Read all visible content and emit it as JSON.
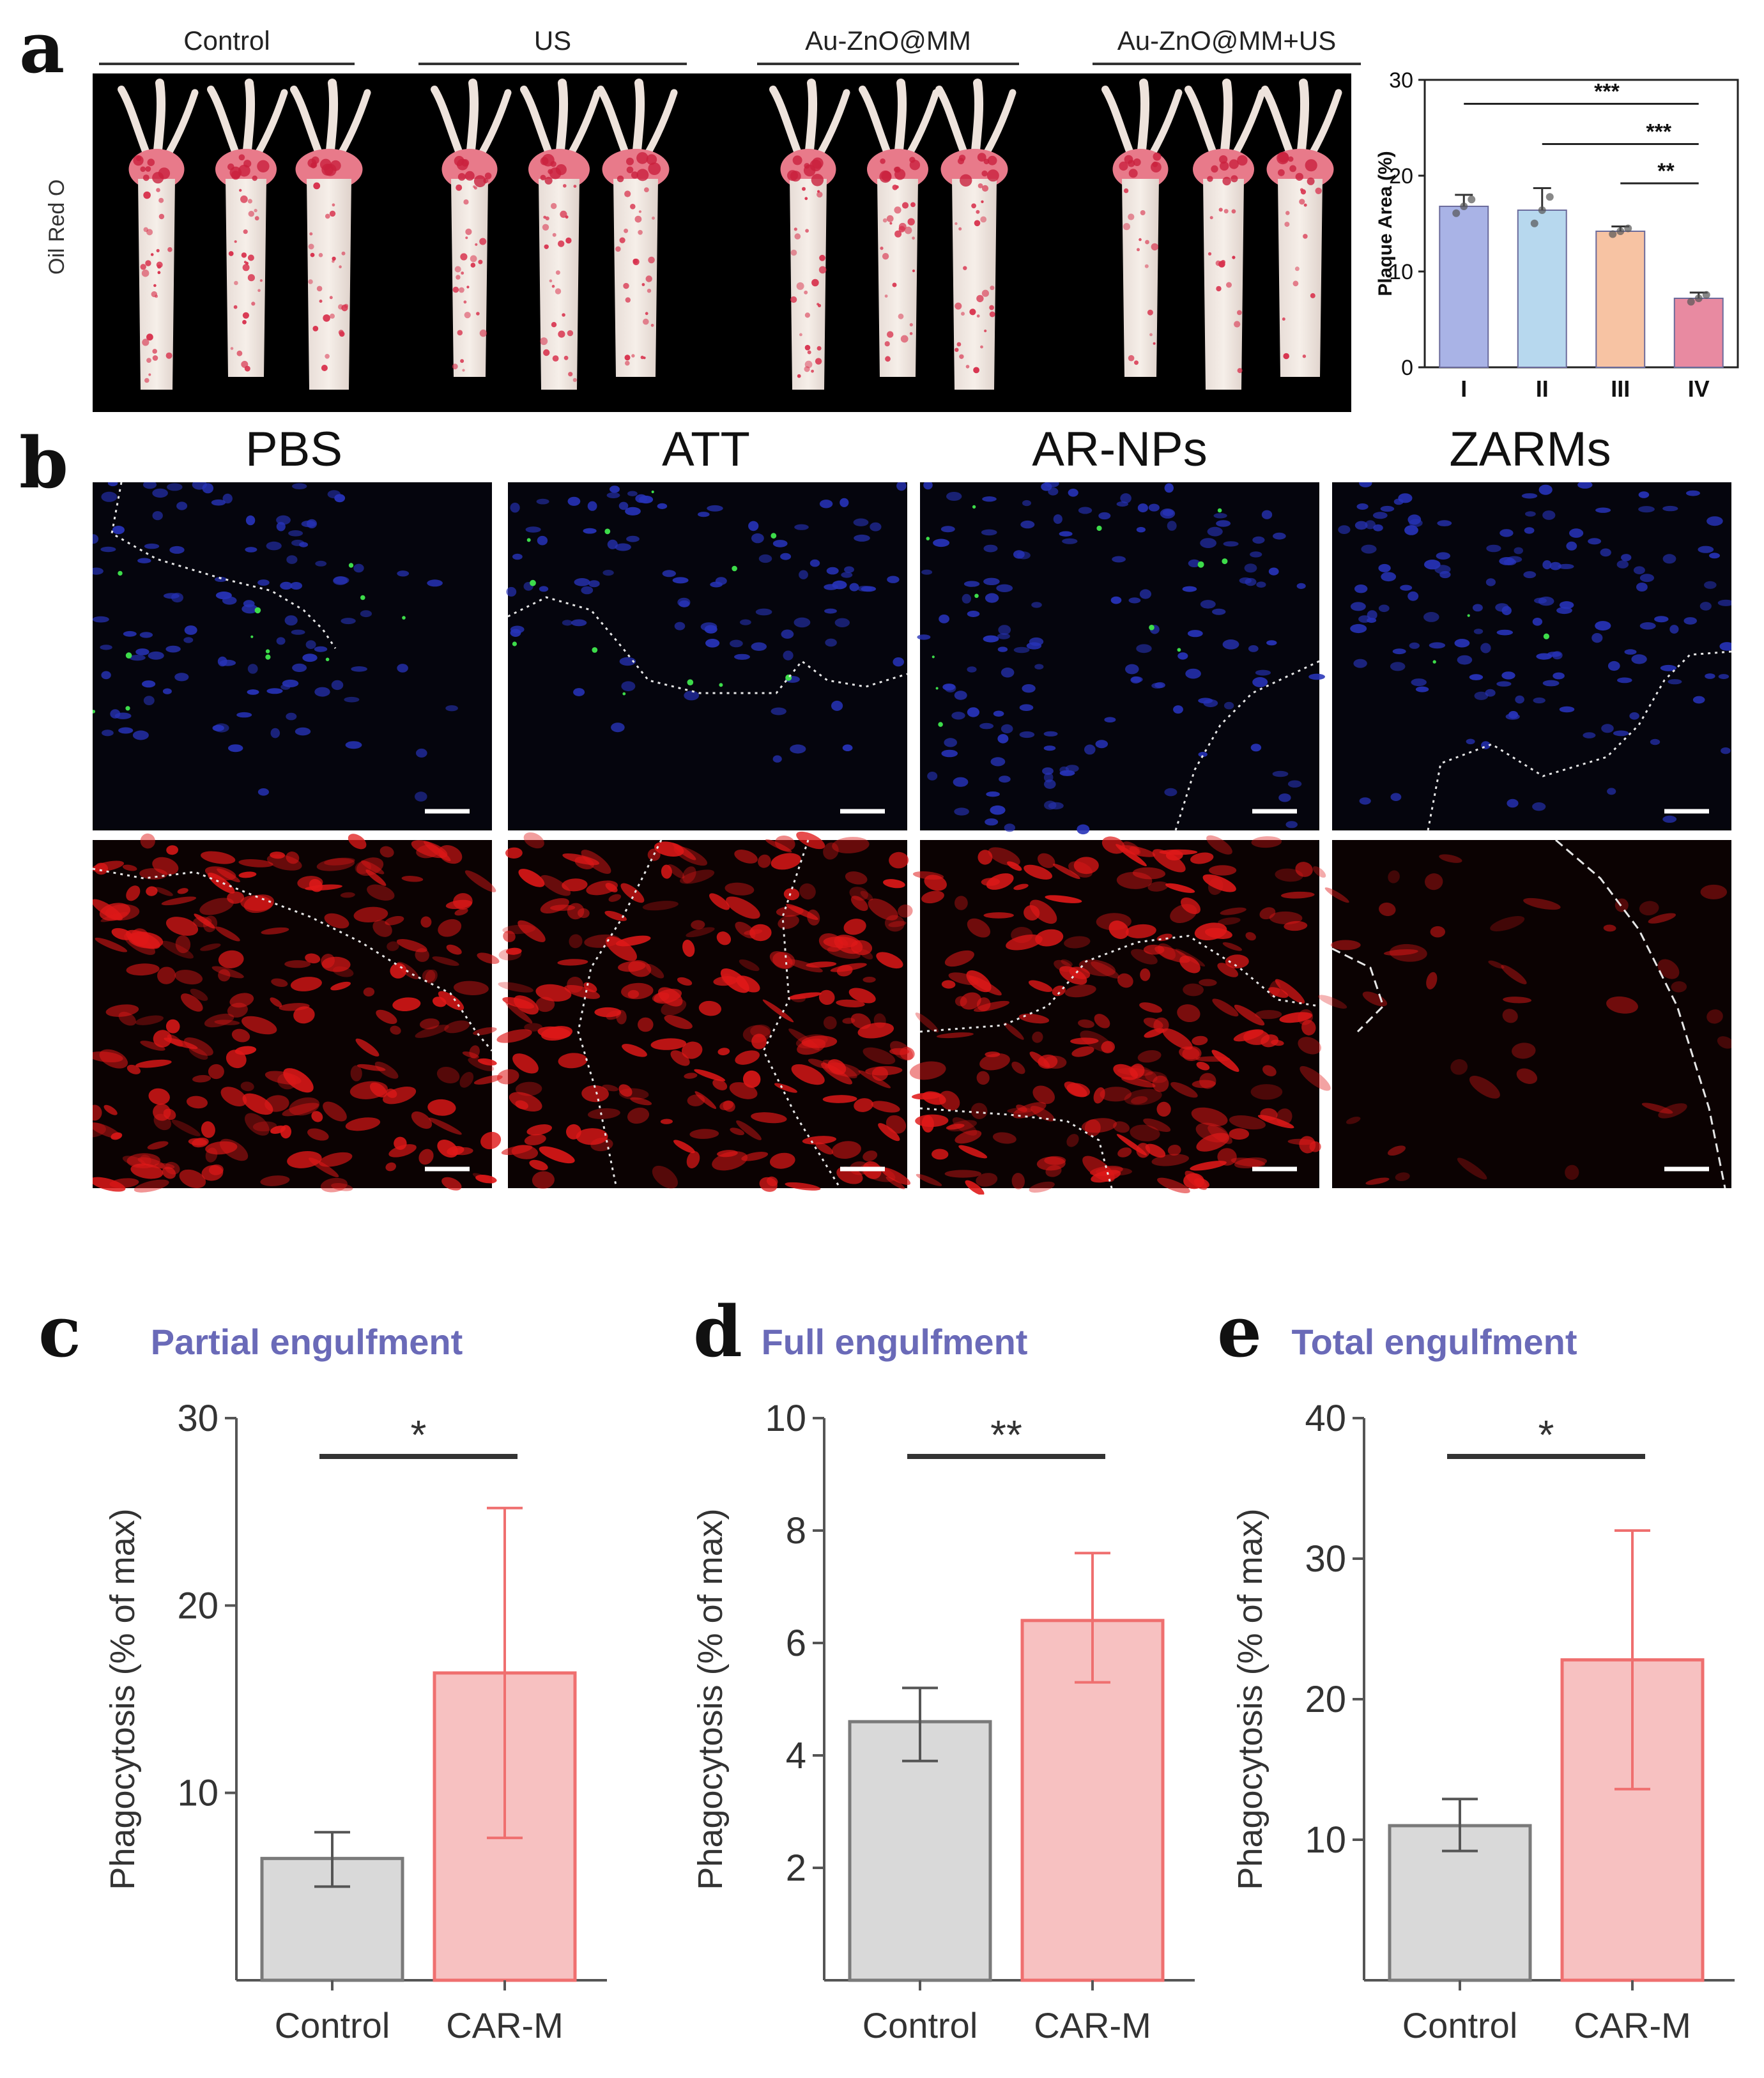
{
  "panels": {
    "a": {
      "letter": "a",
      "groups": [
        "Control",
        "US",
        "Au-ZnO@MM",
        "Au-ZnO@MM+US"
      ],
      "stain_label": "Oil Red O"
    },
    "b": {
      "letter": "b",
      "columns": [
        "PBS",
        "ATT",
        "AR-NPs",
        "ZARMs"
      ]
    },
    "c": {
      "letter": "c"
    },
    "d": {
      "letter": "d"
    },
    "e": {
      "letter": "e"
    }
  },
  "colors": {
    "control_bar": "#d9d9d9",
    "control_edge": "#7a7a7a",
    "carm_bar": "#f7c1c1",
    "carm_edge": "#ef6f6f",
    "title_purple": "#6a6ab8",
    "plaque_I": "#a9b3e6",
    "plaque_II": "#b7d8ee",
    "plaque_III": "#f7c3a3",
    "plaque_IV": "#e88aa1"
  },
  "chart_data": [
    {
      "type": "bar",
      "id": "a-plaque",
      "categories": [
        "I",
        "II",
        "III",
        "IV"
      ],
      "values": [
        16.8,
        16.4,
        14.2,
        7.2
      ],
      "errors": [
        1.2,
        2.3,
        0.5,
        0.6
      ],
      "title": "",
      "xlabel": "",
      "ylabel": "Plaque Area (%)",
      "ylim": [
        0,
        30
      ],
      "yticks": [
        0,
        10,
        20,
        30
      ],
      "significance": [
        {
          "from": "I",
          "to": "IV",
          "label": "***"
        },
        {
          "from": "II",
          "to": "IV",
          "label": "***"
        },
        {
          "from": "III",
          "to": "IV",
          "label": "**"
        }
      ]
    },
    {
      "type": "bar",
      "id": "c-partial",
      "title": "Partial engulfment",
      "categories": [
        "Control",
        "CAR-M"
      ],
      "values": [
        6.5,
        16.4
      ],
      "error_low": [
        5.0,
        7.6
      ],
      "error_high": [
        7.9,
        25.2
      ],
      "ylabel": "Phagocytosis (% of max)",
      "xlabel": "",
      "ylim": [
        0,
        30
      ],
      "yticks": [
        10,
        20,
        30
      ],
      "significance": {
        "label": "*"
      }
    },
    {
      "type": "bar",
      "id": "d-full",
      "title": "Full engulfment",
      "categories": [
        "Control",
        "CAR-M"
      ],
      "values": [
        4.6,
        6.4
      ],
      "error_low": [
        3.9,
        5.3
      ],
      "error_high": [
        5.2,
        7.6
      ],
      "ylabel": "Phagocytosis (% of max)",
      "xlabel": "",
      "ylim": [
        0,
        10
      ],
      "yticks": [
        2,
        4,
        6,
        8,
        10
      ],
      "significance": {
        "label": "**"
      }
    },
    {
      "type": "bar",
      "id": "e-total",
      "title": "Total engulfment",
      "categories": [
        "Control",
        "CAR-M"
      ],
      "values": [
        11.0,
        22.8
      ],
      "error_low": [
        9.2,
        13.6
      ],
      "error_high": [
        12.9,
        32.0
      ],
      "ylabel": "Phagocytosis (% of max)",
      "xlabel": "",
      "ylim": [
        0,
        40
      ],
      "yticks": [
        10,
        20,
        30,
        40
      ],
      "significance": {
        "label": "*"
      }
    }
  ]
}
